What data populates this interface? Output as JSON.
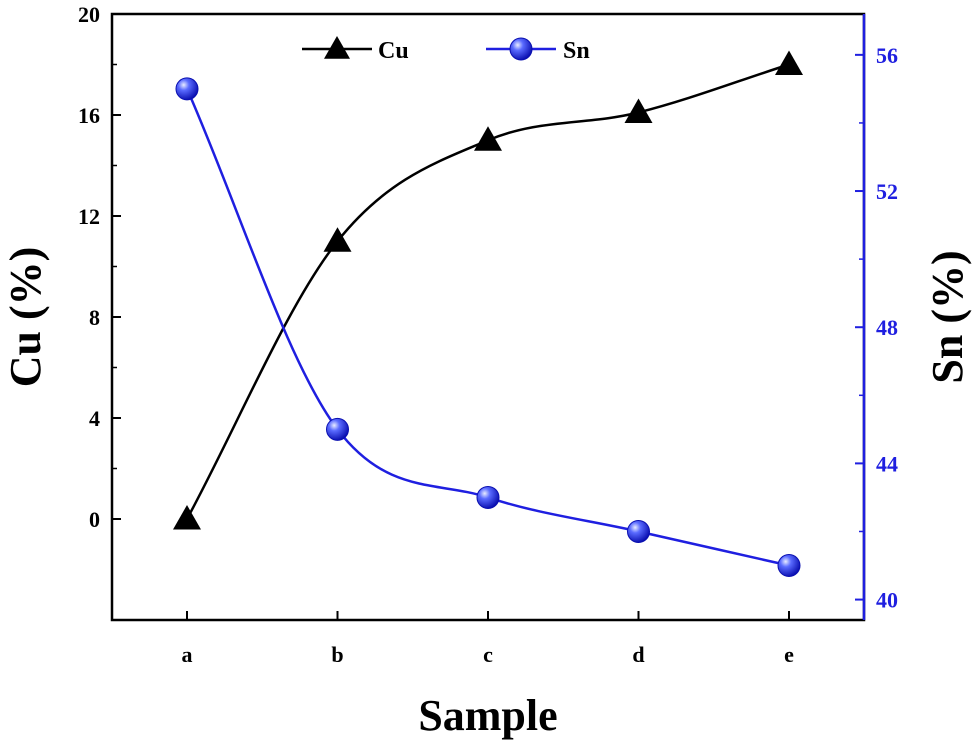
{
  "chart_data": {
    "type": "line",
    "categories": [
      "a",
      "b",
      "c",
      "d",
      "e"
    ],
    "xlabel": "Sample",
    "ylabel_left": "Cu (%)",
    "ylabel_right": "Sn (%)",
    "ylim_left": [
      -4,
      20
    ],
    "yticks_left": [
      "0",
      "4",
      "8",
      "12",
      "16",
      "20"
    ],
    "ylim_right": [
      39.4,
      57.2
    ],
    "yticks_right": [
      "40",
      "44",
      "48",
      "52",
      "56"
    ],
    "legend_position": "top",
    "series": [
      {
        "name": "Cu",
        "axis": "left",
        "color": "#000000",
        "marker": "triangle",
        "values": [
          0,
          11,
          15,
          16.1,
          18
        ]
      },
      {
        "name": "Sn",
        "axis": "right",
        "color": "#1f1fe0",
        "marker": "sphere",
        "values": [
          55,
          45,
          43,
          42,
          41
        ]
      }
    ],
    "grid": false
  }
}
